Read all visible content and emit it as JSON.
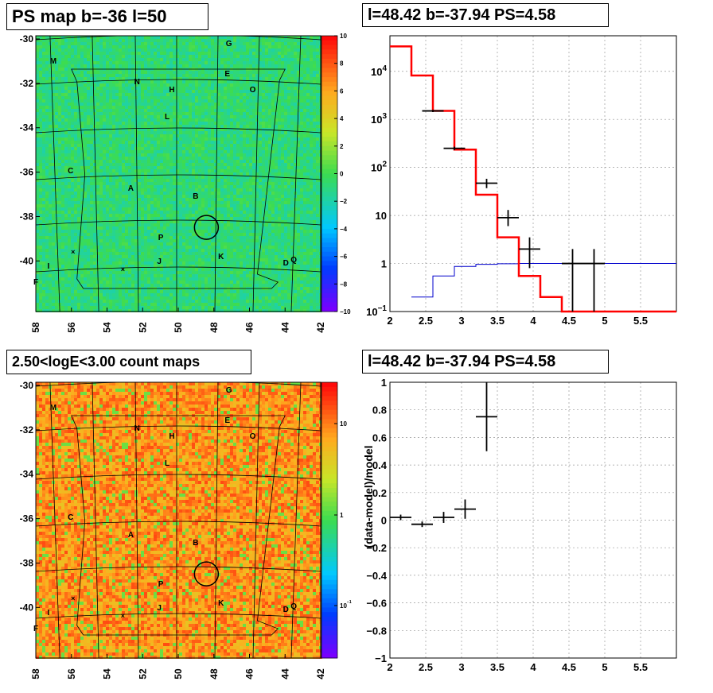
{
  "panels": {
    "ps_map_title": "PS map b=-36 l=50",
    "spectrum_title": "l=48.42 b=-37.94 PS=4.58",
    "count_map_title": "2.50<logE<3.00 count maps",
    "residual_title": "l=48.42 b=-37.94 PS=4.58"
  },
  "colors": {
    "model_line": "#ff0000",
    "background_line": "#0000cc",
    "data_marker": "#000000",
    "ps_map_fill": "#33dd55",
    "count_map_fill": "#ff9933"
  },
  "chart_data": [
    {
      "type": "heatmap",
      "title": "PS map b=-36 l=50",
      "x_ticks": [
        "58",
        "56",
        "54",
        "52",
        "50",
        "48",
        "46",
        "44",
        "42"
      ],
      "y_ticks": [
        "-30",
        "-32",
        "-34",
        "-36",
        "-38",
        "-40"
      ],
      "colorbar_ticks": [
        "10",
        "8",
        "6",
        "4",
        "2",
        "0",
        "−2",
        "−4",
        "−6",
        "−8",
        "−10"
      ],
      "colorbar_range": [
        -10,
        10
      ],
      "source_labels": [
        "G",
        "M",
        "E",
        "N",
        "H",
        "O",
        "L",
        "C",
        "A",
        "B",
        "P",
        "K",
        "J",
        "I",
        "D",
        "Q",
        "F"
      ],
      "marked_source": {
        "l": 48.42,
        "b": -37.94
      }
    },
    {
      "type": "line",
      "title": "l=48.42 b=-37.94 PS=4.58",
      "xlabel": "",
      "ylabel": "",
      "x_ticks": [
        "2",
        "2.5",
        "3",
        "3.5",
        "4",
        "4.5",
        "5",
        "5.5"
      ],
      "y_ticks": [
        "10^{-1}",
        "1",
        "10",
        "10^{2}",
        "10^{3}",
        "10^{4}"
      ],
      "xlim": [
        2,
        6
      ],
      "ylim": [
        0.1,
        55000
      ],
      "y_scale": "log",
      "grid": true,
      "series": [
        {
          "values": [
            [
              2.0,
              33000
            ],
            [
              2.3,
              8200
            ],
            [
              2.6,
              1500
            ],
            [
              2.9,
              235
            ],
            [
              3.2,
              27
            ],
            [
              3.5,
              3.5
            ],
            [
              3.8,
              0.55
            ],
            [
              4.1,
              0.2
            ],
            [
              4.4,
              0.095
            ],
            [
              6.0,
              0.095
            ]
          ]
        },
        {
          "values": [
            [
              2.3,
              0.2
            ],
            [
              2.6,
              0.55
            ],
            [
              2.9,
              0.87
            ],
            [
              3.2,
              0.96
            ],
            [
              3.5,
              0.99
            ],
            [
              3.8,
              1.0
            ],
            [
              6.0,
              1.0
            ]
          ]
        }
      ],
      "points": [
        {
          "x": 2.6,
          "y": 1500,
          "xerr": 0.15,
          "ylo": 1420,
          "yhi": 1580
        },
        {
          "x": 2.9,
          "y": 250,
          "xerr": 0.15,
          "ylo": 230,
          "yhi": 270
        },
        {
          "x": 3.35,
          "y": 47,
          "xerr": 0.15,
          "ylo": 37,
          "yhi": 58
        },
        {
          "x": 3.65,
          "y": 9,
          "xerr": 0.15,
          "ylo": 6,
          "yhi": 13
        },
        {
          "x": 3.95,
          "y": 2,
          "xerr": 0.15,
          "ylo": 0.8,
          "yhi": 3.5
        },
        {
          "x": 4.55,
          "y": 1,
          "xerr": 0.15,
          "ylo": 0.1,
          "yhi": 2
        },
        {
          "x": 4.85,
          "y": 1,
          "xerr": 0.15,
          "ylo": 0.1,
          "yhi": 2
        }
      ]
    },
    {
      "type": "heatmap",
      "title": "2.50<logE<3.00 count maps",
      "x_ticks": [
        "58",
        "56",
        "54",
        "52",
        "50",
        "48",
        "46",
        "44",
        "42"
      ],
      "y_ticks": [
        "-30",
        "-32",
        "-34",
        "-36",
        "-38",
        "-40"
      ],
      "colorbar_ticks": [
        "10",
        "1",
        "10^{-1}"
      ],
      "colorbar_scale": "log",
      "source_labels": [
        "G",
        "M",
        "E",
        "N",
        "H",
        "O",
        "L",
        "C",
        "A",
        "B",
        "P",
        "K",
        "J",
        "I",
        "D",
        "Q",
        "F"
      ],
      "marked_source": {
        "l": 48.42,
        "b": -37.94
      }
    },
    {
      "type": "scatter",
      "title": "l=48.42 b=-37.94 PS=4.58",
      "ylabel": "(data-model)/model",
      "x_ticks": [
        "2",
        "2.5",
        "3",
        "3.5",
        "4",
        "4.5",
        "5",
        "5.5"
      ],
      "y_ticks": [
        "1",
        "0.8",
        "0.6",
        "0.4",
        "0.2",
        "0",
        "−0.2",
        "−0.4",
        "−0.6",
        "−0.8",
        "−1"
      ],
      "xlim": [
        2,
        6
      ],
      "ylim": [
        -1,
        1
      ],
      "grid": true,
      "points": [
        {
          "x": 2.15,
          "y": 0.02,
          "xerr": 0.15,
          "ylo": 0.0,
          "yhi": 0.04
        },
        {
          "x": 2.45,
          "y": -0.03,
          "xerr": 0.15,
          "ylo": -0.05,
          "yhi": -0.01
        },
        {
          "x": 2.75,
          "y": 0.02,
          "xerr": 0.15,
          "ylo": -0.02,
          "yhi": 0.06
        },
        {
          "x": 3.05,
          "y": 0.08,
          "xerr": 0.15,
          "ylo": 0.01,
          "yhi": 0.15
        },
        {
          "x": 3.35,
          "y": 0.75,
          "xerr": 0.15,
          "ylo": 0.5,
          "yhi": 1.0
        }
      ]
    }
  ]
}
